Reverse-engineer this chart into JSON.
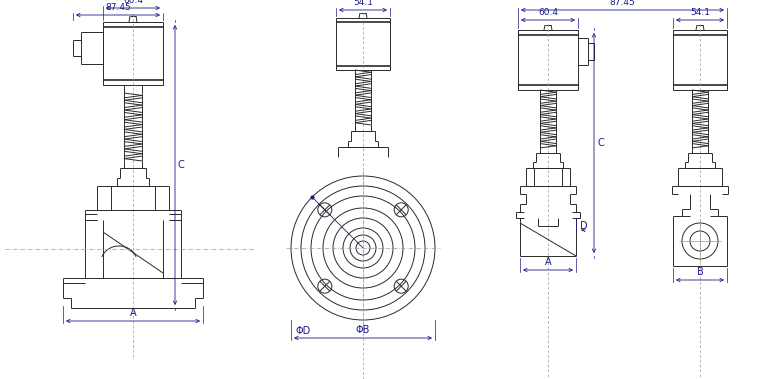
{
  "bg_color": "#ffffff",
  "line_color": "#2a2a2a",
  "dim_color": "#1a1a8c",
  "fig_width": 7.68,
  "fig_height": 3.79,
  "labels": {
    "dim_87_45": "87.45",
    "dim_60_4": "60.4",
    "dim_54_1": "54.1",
    "label_A": "A",
    "label_B": "B",
    "label_C": "C",
    "label_D": "D",
    "label_phiD": "ΦD",
    "label_phiB": "ΦB"
  }
}
